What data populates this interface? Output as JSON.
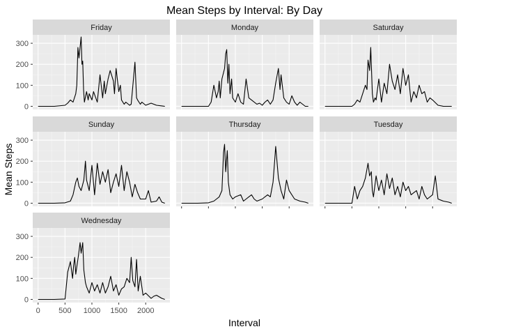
{
  "chart_data": {
    "type": "line",
    "title": "Mean Steps by Interval: By Day",
    "xlabel": "Interval",
    "ylabel": "Mean Steps",
    "xlim": [
      -100,
      2450
    ],
    "ylim": [
      -15,
      340
    ],
    "x_ticks": [
      0,
      500,
      1000,
      1500,
      2000
    ],
    "y_ticks": [
      0,
      100,
      200,
      300
    ],
    "grid": true,
    "background": "#ebebeb",
    "strip_fill": "#d9d9d9",
    "line_color": "#000000",
    "facets": [
      {
        "name": "Friday",
        "x": [
          0,
          300,
          500,
          550,
          600,
          650,
          700,
          720,
          740,
          760,
          800,
          815,
          830,
          845,
          860,
          900,
          930,
          950,
          1000,
          1030,
          1100,
          1150,
          1200,
          1230,
          1250,
          1300,
          1340,
          1400,
          1420,
          1450,
          1500,
          1530,
          1550,
          1600,
          1630,
          1700,
          1730,
          1800,
          1830,
          1850,
          1900,
          1930,
          2000,
          2100,
          2200,
          2300,
          2355
        ],
        "y": [
          0,
          0,
          5,
          15,
          30,
          20,
          60,
          100,
          280,
          230,
          330,
          200,
          215,
          80,
          20,
          70,
          30,
          60,
          30,
          70,
          20,
          150,
          40,
          120,
          60,
          130,
          170,
          120,
          60,
          180,
          70,
          100,
          30,
          10,
          20,
          5,
          10,
          210,
          40,
          30,
          10,
          20,
          5,
          15,
          5,
          2,
          0
        ]
      },
      {
        "name": "Monday",
        "x": [
          0,
          300,
          500,
          550,
          600,
          650,
          680,
          700,
          720,
          750,
          800,
          820,
          840,
          860,
          880,
          900,
          930,
          950,
          1000,
          1050,
          1100,
          1150,
          1200,
          1250,
          1300,
          1400,
          1450,
          1500,
          1550,
          1600,
          1650,
          1700,
          1750,
          1800,
          1830,
          1850,
          1900,
          1950,
          2000,
          2050,
          2100,
          2150,
          2200,
          2300,
          2355
        ],
        "y": [
          0,
          0,
          0,
          20,
          100,
          40,
          70,
          120,
          40,
          130,
          180,
          250,
          270,
          110,
          200,
          60,
          130,
          40,
          20,
          60,
          20,
          10,
          130,
          40,
          30,
          10,
          15,
          5,
          20,
          30,
          10,
          30,
          110,
          180,
          80,
          150,
          40,
          20,
          10,
          50,
          20,
          5,
          20,
          0,
          0
        ]
      },
      {
        "name": "Saturday",
        "x": [
          0,
          300,
          500,
          550,
          600,
          650,
          700,
          750,
          780,
          800,
          830,
          850,
          880,
          900,
          930,
          950,
          1000,
          1050,
          1100,
          1150,
          1200,
          1250,
          1300,
          1350,
          1400,
          1450,
          1500,
          1550,
          1600,
          1650,
          1700,
          1750,
          1800,
          1850,
          1900,
          1950,
          2000,
          2100,
          2200,
          2300,
          2355
        ],
        "y": [
          0,
          0,
          0,
          10,
          30,
          20,
          60,
          100,
          80,
          220,
          170,
          280,
          60,
          20,
          40,
          30,
          130,
          20,
          110,
          60,
          200,
          120,
          80,
          150,
          60,
          180,
          100,
          150,
          20,
          70,
          40,
          100,
          60,
          70,
          20,
          40,
          30,
          5,
          0,
          0,
          0
        ]
      },
      {
        "name": "Sunday",
        "x": [
          0,
          300,
          500,
          600,
          650,
          700,
          730,
          760,
          800,
          850,
          880,
          900,
          950,
          1000,
          1050,
          1100,
          1150,
          1200,
          1250,
          1300,
          1350,
          1400,
          1450,
          1500,
          1550,
          1600,
          1650,
          1700,
          1750,
          1800,
          1850,
          1900,
          2000,
          2050,
          2100,
          2200,
          2250,
          2300,
          2355
        ],
        "y": [
          0,
          0,
          2,
          10,
          40,
          100,
          120,
          80,
          60,
          110,
          200,
          110,
          60,
          180,
          40,
          190,
          90,
          150,
          100,
          160,
          50,
          100,
          140,
          80,
          180,
          60,
          150,
          100,
          30,
          90,
          50,
          20,
          20,
          60,
          5,
          10,
          30,
          5,
          0
        ]
      },
      {
        "name": "Thursday",
        "x": [
          0,
          300,
          500,
          600,
          650,
          700,
          750,
          780,
          800,
          820,
          850,
          870,
          900,
          950,
          1000,
          1100,
          1150,
          1200,
          1250,
          1300,
          1350,
          1400,
          1500,
          1600,
          1650,
          1700,
          1730,
          1750,
          1800,
          1850,
          1900,
          1950,
          2000,
          2100,
          2200,
          2300,
          2355
        ],
        "y": [
          0,
          0,
          2,
          10,
          20,
          30,
          60,
          240,
          280,
          150,
          250,
          100,
          40,
          20,
          30,
          40,
          10,
          20,
          30,
          40,
          20,
          10,
          20,
          40,
          30,
          100,
          200,
          270,
          120,
          60,
          20,
          110,
          60,
          20,
          10,
          5,
          0
        ]
      },
      {
        "name": "Tuesday",
        "x": [
          0,
          300,
          500,
          550,
          600,
          650,
          700,
          750,
          800,
          830,
          860,
          880,
          900,
          950,
          1000,
          1050,
          1100,
          1150,
          1200,
          1250,
          1300,
          1350,
          1400,
          1450,
          1500,
          1550,
          1600,
          1700,
          1750,
          1800,
          1850,
          1900,
          2000,
          2050,
          2100,
          2200,
          2300,
          2355
        ],
        "y": [
          0,
          0,
          0,
          80,
          20,
          60,
          80,
          120,
          190,
          130,
          150,
          60,
          30,
          130,
          60,
          110,
          40,
          140,
          70,
          120,
          40,
          80,
          30,
          100,
          60,
          80,
          40,
          60,
          20,
          80,
          40,
          20,
          40,
          130,
          20,
          10,
          5,
          0
        ]
      },
      {
        "name": "Wednesday",
        "x": [
          0,
          300,
          500,
          550,
          600,
          640,
          660,
          680,
          700,
          750,
          780,
          800,
          830,
          850,
          880,
          900,
          950,
          1000,
          1050,
          1100,
          1150,
          1200,
          1250,
          1300,
          1350,
          1400,
          1450,
          1500,
          1550,
          1600,
          1650,
          1700,
          1730,
          1760,
          1800,
          1830,
          1860,
          1900,
          1950,
          2000,
          2100,
          2150,
          2200,
          2300,
          2355
        ],
        "y": [
          0,
          0,
          2,
          130,
          180,
          100,
          160,
          200,
          120,
          210,
          270,
          220,
          270,
          140,
          80,
          60,
          30,
          80,
          40,
          70,
          30,
          80,
          30,
          60,
          110,
          40,
          70,
          20,
          50,
          60,
          100,
          80,
          200,
          90,
          60,
          190,
          40,
          110,
          20,
          30,
          5,
          15,
          20,
          5,
          0
        ]
      }
    ]
  }
}
